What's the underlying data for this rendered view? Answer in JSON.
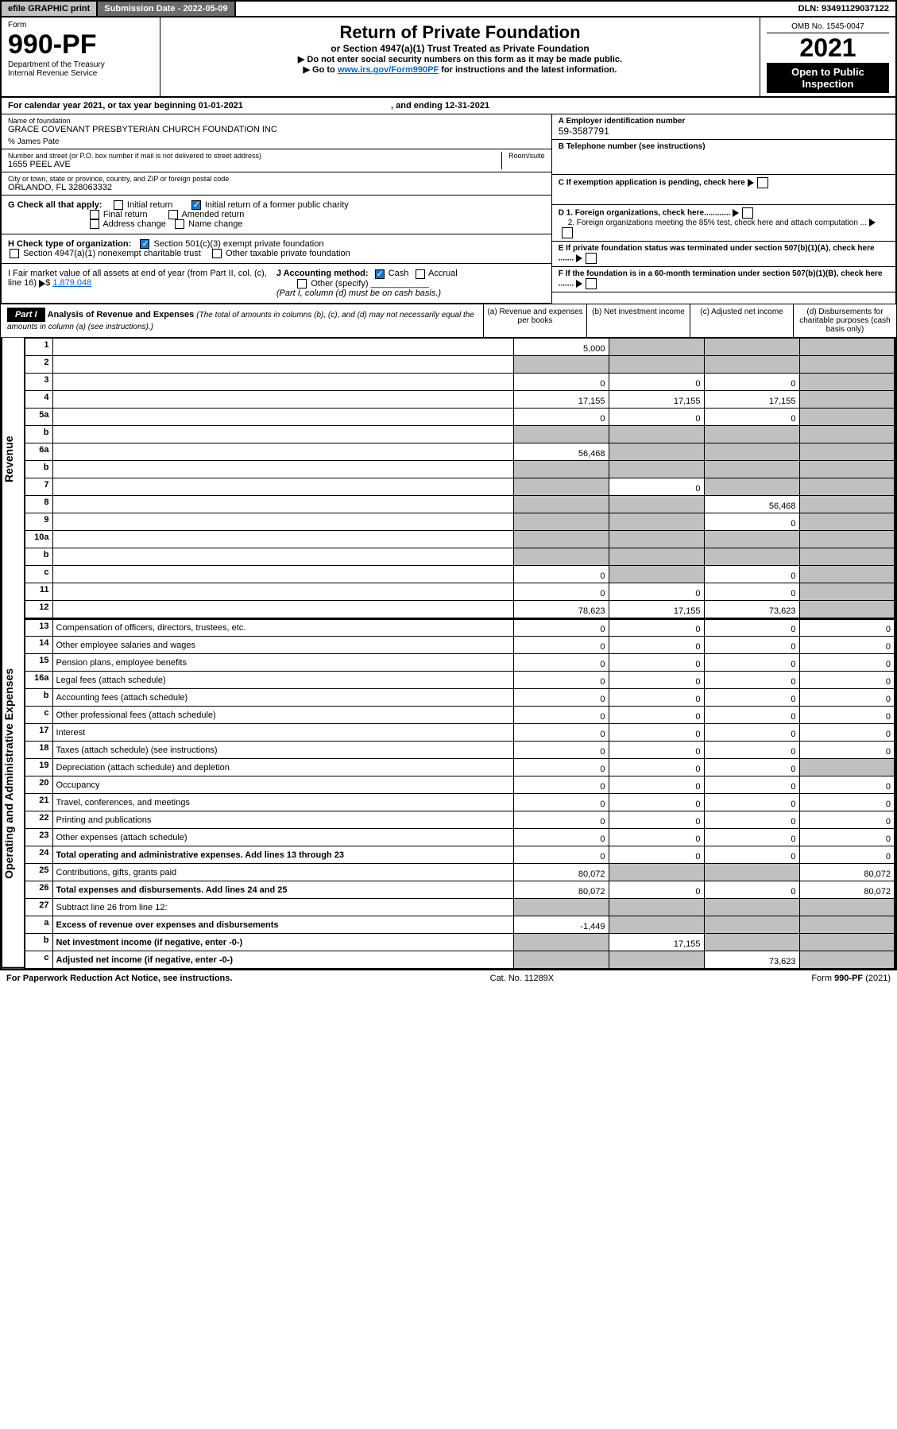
{
  "topbar": {
    "efile": "efile GRAPHIC print",
    "subdate": "Submission Date - 2022-05-09",
    "dln": "DLN: 93491129037122"
  },
  "header": {
    "form_label": "Form",
    "form_no": "990-PF",
    "dept": "Department of the Treasury",
    "irs": "Internal Revenue Service",
    "title": "Return of Private Foundation",
    "subtitle": "or Section 4947(a)(1) Trust Treated as Private Foundation",
    "note1": "▶ Do not enter social security numbers on this form as it may be made public.",
    "note2_pre": "▶ Go to ",
    "note2_link": "www.irs.gov/Form990PF",
    "note2_post": " for instructions and the latest information.",
    "omb": "OMB No. 1545-0047",
    "year": "2021",
    "open": "Open to Public Inspection"
  },
  "cal": {
    "text": "For calendar year 2021, or tax year beginning 01-01-2021",
    "ending": ", and ending 12-31-2021"
  },
  "info": {
    "name_lbl": "Name of foundation",
    "name_val": "GRACE COVENANT PRESBYTERIAN CHURCH FOUNDATION INC",
    "care_of": "% James Pate",
    "addr_lbl": "Number and street (or P.O. box number if mail is not delivered to street address)",
    "addr_val": "1655 PEEL AVE",
    "room_lbl": "Room/suite",
    "city_lbl": "City or town, state or province, country, and ZIP or foreign postal code",
    "city_val": "ORLANDO, FL  328063332",
    "a_lbl": "A Employer identification number",
    "a_val": "59-3587791",
    "b_lbl": "B Telephone number (see instructions)",
    "b_val": "",
    "c_lbl": "C If exemption application is pending, check here",
    "d1": "D 1. Foreign organizations, check here............",
    "d2": "2. Foreign organizations meeting the 85% test, check here and attach computation ...",
    "e": "E  If private foundation status was terminated under section 507(b)(1)(A), check here .......",
    "f": "F  If the foundation is in a 60-month termination under section 507(b)(1)(B), check here .......",
    "g_lbl": "G Check all that apply:",
    "g_opts": [
      "Initial return",
      "Final return",
      "Address change",
      "Initial return of a former public charity",
      "Amended return",
      "Name change"
    ],
    "h_lbl": "H Check type of organization:",
    "h1": "Section 501(c)(3) exempt private foundation",
    "h2": "Section 4947(a)(1) nonexempt charitable trust",
    "h3": "Other taxable private foundation",
    "i_lbl": "I Fair market value of all assets at end of year (from Part II, col. (c), line 16)",
    "i_val": "1,879,048",
    "j_lbl": "J Accounting method:",
    "j_cash": "Cash",
    "j_accr": "Accrual",
    "j_other": "Other (specify)",
    "j_note": "(Part I, column (d) must be on cash basis.)"
  },
  "part1": {
    "label": "Part I",
    "title": "Analysis of Revenue and Expenses",
    "title_note": " (The total of amounts in columns (b), (c), and (d) may not necessarily equal the amounts in column (a) (see instructions).)",
    "col_a": "(a)  Revenue and expenses per books",
    "col_b": "(b)  Net investment income",
    "col_c": "(c)  Adjusted net income",
    "col_d": "(d)  Disbursements for charitable purposes (cash basis only)"
  },
  "side": {
    "revenue": "Revenue",
    "expenses": "Operating and Administrative Expenses"
  },
  "rows": [
    {
      "n": "1",
      "d": "",
      "a": "5,000",
      "b": "",
      "c": "",
      "sb": true,
      "sc": true,
      "sd": true
    },
    {
      "n": "2",
      "d": "",
      "a": "",
      "b": "",
      "c": "",
      "sb": true,
      "sc": true,
      "sd": true,
      "no_a": true
    },
    {
      "n": "3",
      "d": "",
      "a": "0",
      "b": "0",
      "c": "0",
      "sd": true
    },
    {
      "n": "4",
      "d": "",
      "a": "17,155",
      "b": "17,155",
      "c": "17,155",
      "sd": true
    },
    {
      "n": "5a",
      "d": "",
      "a": "0",
      "b": "0",
      "c": "0",
      "sd": true
    },
    {
      "n": "b",
      "d": "",
      "a": "",
      "b": "",
      "c": "",
      "sa": true,
      "sb": true,
      "sc": true,
      "sd": true
    },
    {
      "n": "6a",
      "d": "",
      "a": "56,468",
      "b": "",
      "c": "",
      "sb": true,
      "sc": true,
      "sd": true
    },
    {
      "n": "b",
      "d": "",
      "a": "",
      "b": "",
      "c": "",
      "sa": true,
      "sb": true,
      "sc": true,
      "sd": true
    },
    {
      "n": "7",
      "d": "",
      "a": "",
      "b": "0",
      "c": "",
      "sa": true,
      "sc": true,
      "sd": true
    },
    {
      "n": "8",
      "d": "",
      "a": "",
      "b": "",
      "c": "56,468",
      "sa": true,
      "sb": true,
      "sd": true
    },
    {
      "n": "9",
      "d": "",
      "a": "",
      "b": "",
      "c": "0",
      "sa": true,
      "sb": true,
      "sd": true
    },
    {
      "n": "10a",
      "d": "",
      "a": "",
      "b": "",
      "c": "",
      "sa": true,
      "sb": true,
      "sc": true,
      "sd": true
    },
    {
      "n": "b",
      "d": "",
      "a": "",
      "b": "",
      "c": "",
      "sa": true,
      "sb": true,
      "sc": true,
      "sd": true
    },
    {
      "n": "c",
      "d": "",
      "a": "0",
      "b": "",
      "c": "0",
      "sb": true,
      "sd": true
    },
    {
      "n": "11",
      "d": "",
      "a": "0",
      "b": "0",
      "c": "0",
      "sd": true
    },
    {
      "n": "12",
      "d": "",
      "a": "78,623",
      "b": "17,155",
      "c": "73,623",
      "sd": true,
      "bold": true
    }
  ],
  "exp_rows": [
    {
      "n": "13",
      "d": "Compensation of officers, directors, trustees, etc.",
      "a": "0",
      "b": "0",
      "c": "0",
      "dd": "0"
    },
    {
      "n": "14",
      "d": "Other employee salaries and wages",
      "a": "0",
      "b": "0",
      "c": "0",
      "dd": "0"
    },
    {
      "n": "15",
      "d": "Pension plans, employee benefits",
      "a": "0",
      "b": "0",
      "c": "0",
      "dd": "0"
    },
    {
      "n": "16a",
      "d": "Legal fees (attach schedule)",
      "a": "0",
      "b": "0",
      "c": "0",
      "dd": "0"
    },
    {
      "n": "b",
      "d": "Accounting fees (attach schedule)",
      "a": "0",
      "b": "0",
      "c": "0",
      "dd": "0"
    },
    {
      "n": "c",
      "d": "Other professional fees (attach schedule)",
      "a": "0",
      "b": "0",
      "c": "0",
      "dd": "0"
    },
    {
      "n": "17",
      "d": "Interest",
      "a": "0",
      "b": "0",
      "c": "0",
      "dd": "0"
    },
    {
      "n": "18",
      "d": "Taxes (attach schedule) (see instructions)",
      "a": "0",
      "b": "0",
      "c": "0",
      "dd": "0"
    },
    {
      "n": "19",
      "d": "Depreciation (attach schedule) and depletion",
      "a": "0",
      "b": "0",
      "c": "0",
      "dd": "",
      "sd": true
    },
    {
      "n": "20",
      "d": "Occupancy",
      "a": "0",
      "b": "0",
      "c": "0",
      "dd": "0"
    },
    {
      "n": "21",
      "d": "Travel, conferences, and meetings",
      "a": "0",
      "b": "0",
      "c": "0",
      "dd": "0"
    },
    {
      "n": "22",
      "d": "Printing and publications",
      "a": "0",
      "b": "0",
      "c": "0",
      "dd": "0"
    },
    {
      "n": "23",
      "d": "Other expenses (attach schedule)",
      "a": "0",
      "b": "0",
      "c": "0",
      "dd": "0"
    },
    {
      "n": "24",
      "d": "Total operating and administrative expenses. Add lines 13 through 23",
      "a": "0",
      "b": "0",
      "c": "0",
      "dd": "0",
      "bold": true
    },
    {
      "n": "25",
      "d": "Contributions, gifts, grants paid",
      "a": "80,072",
      "b": "",
      "c": "",
      "dd": "80,072",
      "sb": true,
      "sc": true
    },
    {
      "n": "26",
      "d": "Total expenses and disbursements. Add lines 24 and 25",
      "a": "80,072",
      "b": "0",
      "c": "0",
      "dd": "80,072",
      "bold": true
    },
    {
      "n": "27",
      "d": "Subtract line 26 from line 12:",
      "a": "",
      "b": "",
      "c": "",
      "dd": "",
      "sa": true,
      "sb": true,
      "sc": true,
      "sd": true
    },
    {
      "n": "a",
      "d": "Excess of revenue over expenses and disbursements",
      "a": "-1,449",
      "b": "",
      "c": "",
      "dd": "",
      "sb": true,
      "sc": true,
      "sd": true,
      "bold": true
    },
    {
      "n": "b",
      "d": "Net investment income (if negative, enter -0-)",
      "a": "",
      "b": "17,155",
      "c": "",
      "dd": "",
      "sa": true,
      "sc": true,
      "sd": true,
      "bold": true
    },
    {
      "n": "c",
      "d": "Adjusted net income (if negative, enter -0-)",
      "a": "",
      "b": "",
      "c": "73,623",
      "dd": "",
      "sa": true,
      "sb": true,
      "sd": true,
      "bold": true
    }
  ],
  "footer": {
    "left": "For Paperwork Reduction Act Notice, see instructions.",
    "mid": "Cat. No. 11289X",
    "right": "Form 990-PF (2021)"
  },
  "colors": {
    "link": "#0066cc",
    "shade": "#c0c0c0",
    "dark": "#000000"
  }
}
